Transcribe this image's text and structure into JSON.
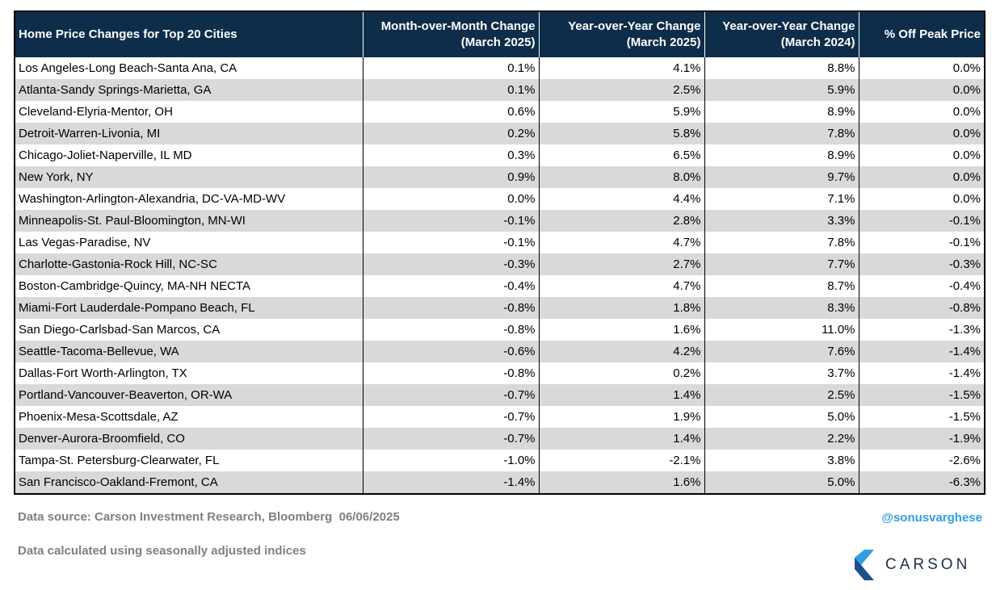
{
  "chart_data": {
    "type": "table",
    "columns": [
      {
        "label": "Home Price Changes for Top 20 Cities",
        "lines": [
          "Home Price Changes for Top 20 Cities"
        ]
      },
      {
        "label": "Month-over-Month Change (March 2025)",
        "lines": [
          "Month-over-Month Change",
          "(March 2025)"
        ]
      },
      {
        "label": "Year-over-Year Change (March 2025)",
        "lines": [
          "Year-over-Year Change",
          "(March 2025)"
        ]
      },
      {
        "label": "Year-over-Year Change (March 2024)",
        "lines": [
          "Year-over-Year Change",
          "(March 2024)"
        ]
      },
      {
        "label": "% Off Peak Price",
        "lines": [
          "% Off Peak Price"
        ]
      }
    ],
    "rows": [
      [
        "Los Angeles-Long Beach-Santa Ana, CA",
        "0.1%",
        "4.1%",
        "8.8%",
        "0.0%"
      ],
      [
        "Atlanta-Sandy Springs-Marietta, GA",
        "0.1%",
        "2.5%",
        "5.9%",
        "0.0%"
      ],
      [
        "Cleveland-Elyria-Mentor, OH",
        "0.6%",
        "5.9%",
        "8.9%",
        "0.0%"
      ],
      [
        "Detroit-Warren-Livonia, MI",
        "0.2%",
        "5.8%",
        "7.8%",
        "0.0%"
      ],
      [
        "Chicago-Joliet-Naperville, IL MD",
        "0.3%",
        "6.5%",
        "8.9%",
        "0.0%"
      ],
      [
        "New York, NY",
        "0.9%",
        "8.0%",
        "9.7%",
        "0.0%"
      ],
      [
        "Washington-Arlington-Alexandria, DC-VA-MD-WV",
        "0.0%",
        "4.4%",
        "7.1%",
        "0.0%"
      ],
      [
        "Minneapolis-St. Paul-Bloomington, MN-WI",
        "-0.1%",
        "2.8%",
        "3.3%",
        "-0.1%"
      ],
      [
        "Las Vegas-Paradise, NV",
        "-0.1%",
        "4.7%",
        "7.8%",
        "-0.1%"
      ],
      [
        "Charlotte-Gastonia-Rock Hill, NC-SC",
        "-0.3%",
        "2.7%",
        "7.7%",
        "-0.3%"
      ],
      [
        "Boston-Cambridge-Quincy, MA-NH NECTA",
        "-0.4%",
        "4.7%",
        "8.7%",
        "-0.4%"
      ],
      [
        "Miami-Fort Lauderdale-Pompano Beach, FL",
        "-0.8%",
        "1.8%",
        "8.3%",
        "-0.8%"
      ],
      [
        "San Diego-Carlsbad-San Marcos, CA",
        "-0.8%",
        "1.6%",
        "11.0%",
        "-1.3%"
      ],
      [
        "Seattle-Tacoma-Bellevue, WA",
        "-0.6%",
        "4.2%",
        "7.6%",
        "-1.4%"
      ],
      [
        "Dallas-Fort Worth-Arlington, TX",
        "-0.8%",
        "0.2%",
        "3.7%",
        "-1.4%"
      ],
      [
        "Portland-Vancouver-Beaverton, OR-WA",
        "-0.7%",
        "1.4%",
        "2.5%",
        "-1.5%"
      ],
      [
        "Phoenix-Mesa-Scottsdale, AZ",
        "-0.7%",
        "1.9%",
        "5.0%",
        "-1.5%"
      ],
      [
        "Denver-Aurora-Broomfield, CO",
        "-0.7%",
        "1.4%",
        "2.2%",
        "-1.9%"
      ],
      [
        "Tampa-St. Petersburg-Clearwater, FL",
        "-1.0%",
        "-2.1%",
        "3.8%",
        "-2.6%"
      ],
      [
        "San Francisco-Oakland-Fremont, CA",
        "-1.4%",
        "1.6%",
        "5.0%",
        "-6.3%"
      ]
    ]
  },
  "footer": {
    "source": "Data source: Carson Investment Research, Bloomberg  06/06/2025",
    "note": "Data calculated using seasonally adjusted indices",
    "handle": "@sonusvarghese"
  },
  "logo": {
    "text": "CARSON",
    "colors": {
      "light": "#2e9fe0",
      "dark": "#1f4e8c",
      "text": "#1c2f45"
    }
  },
  "colors": {
    "header_bg": "#0e2d4a",
    "stripe": "#d9d9d9",
    "footer_text": "#7f7f7f",
    "handle": "#2e9fe0"
  }
}
